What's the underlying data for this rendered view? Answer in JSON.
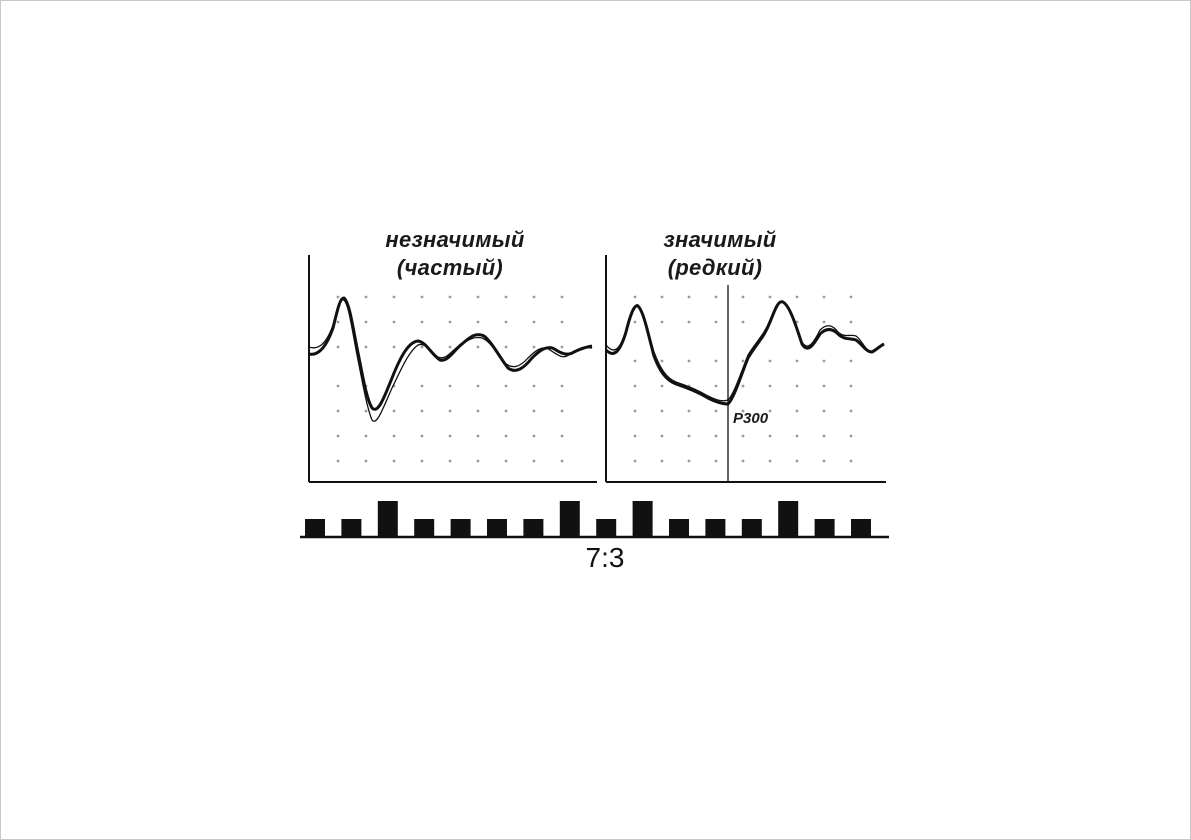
{
  "panels": [
    {
      "title_line1": "незначимый",
      "title_line2": "(частый)"
    },
    {
      "title_line1": "значимый",
      "title_line2": "(редкий)",
      "marker_label": "P300"
    }
  ],
  "stimulus_sequence": {
    "pattern": [
      "low",
      "low",
      "high",
      "low",
      "low",
      "low",
      "low",
      "high",
      "low",
      "high",
      "low",
      "low",
      "low",
      "high",
      "low",
      "low"
    ],
    "ratio_label": "7:3"
  },
  "colors": {
    "ink": "#111111",
    "paper": "#ffffff",
    "dots": "#9a9a9a"
  }
}
